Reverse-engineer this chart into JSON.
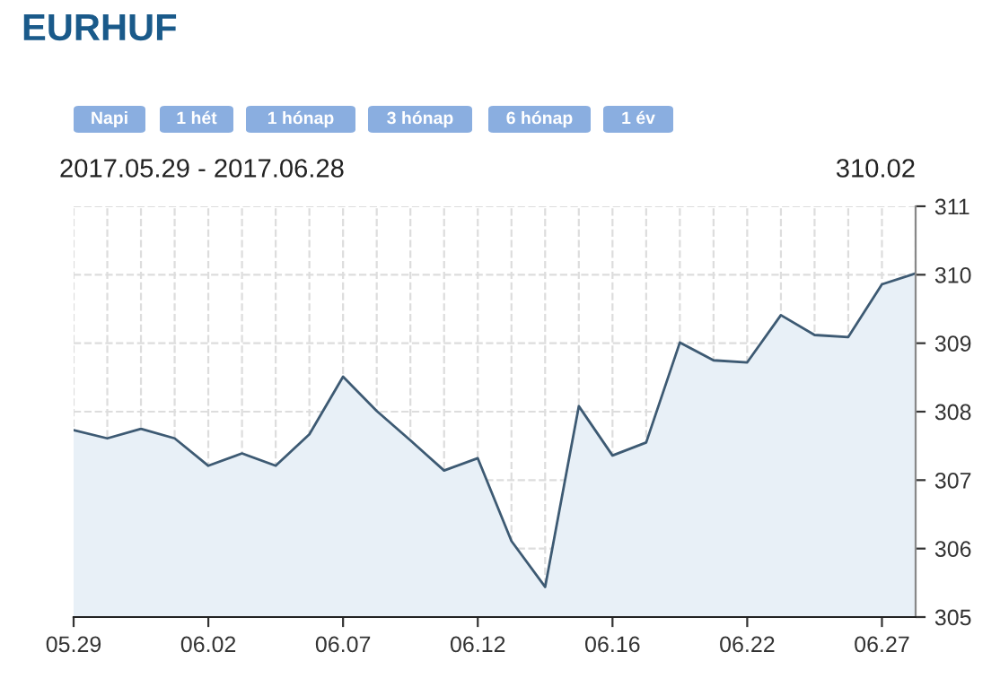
{
  "chart_data": {
    "type": "area",
    "title": "EURHUF",
    "subtitle": "2017.05.29 - 2017.06.28",
    "annotations": [
      "Napi",
      "1 hét",
      "1 hónap",
      "3 hónap",
      "6 hónap",
      "1 év",
      "310.02"
    ],
    "categories": [
      "05.29",
      null,
      null,
      null,
      "06.02",
      null,
      null,
      null,
      "06.07",
      null,
      null,
      null,
      "06.12",
      null,
      null,
      null,
      "06.16",
      null,
      null,
      null,
      "06.22",
      null,
      null,
      null,
      "06.27",
      null
    ],
    "series": [
      {
        "color": "#3d5a73",
        "values": [
          307.73,
          307.61,
          307.75,
          307.61,
          307.21,
          307.39,
          307.21,
          307.67,
          308.51,
          308.01,
          307.58,
          307.14,
          307.32,
          306.11,
          305.44,
          308.08,
          307.36,
          307.55,
          309.01,
          308.75,
          308.72,
          309.41,
          309.12,
          309.09,
          309.86,
          310.02
        ]
      }
    ],
    "ylim": [
      305,
      311
    ],
    "yticks": [
      305,
      306,
      307,
      308,
      309,
      310,
      311
    ],
    "grid": true
  }
}
